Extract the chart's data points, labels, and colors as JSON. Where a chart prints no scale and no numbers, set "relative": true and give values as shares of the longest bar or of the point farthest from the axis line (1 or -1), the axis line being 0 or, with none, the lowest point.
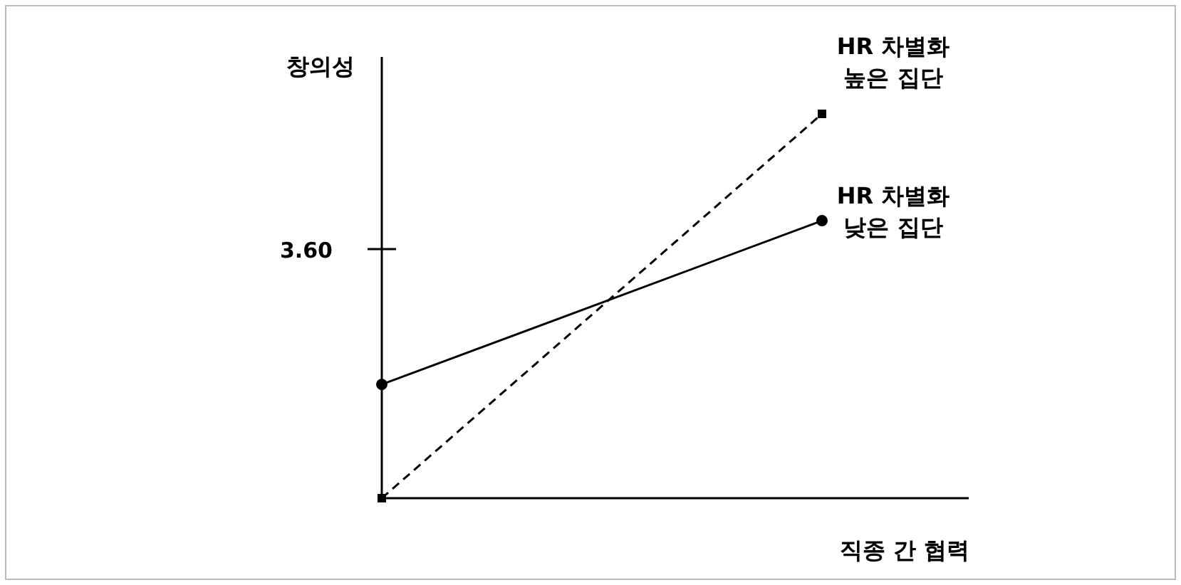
{
  "chart_data": {
    "type": "line",
    "relative": true,
    "xlabel": "직종 간 협력",
    "ylabel": "창의성",
    "categories": [
      null,
      null
    ],
    "series": [
      {
        "name": "HR 차별화\n높은 집단",
        "color": "#000000",
        "values": [
          0,
          1
        ],
        "line_style": "dashed",
        "marker": "square"
      },
      {
        "name": "HR 차별화\n낮은 집단",
        "color": "#000000",
        "values": [
          0.296,
          0.722
        ],
        "line_style": "solid",
        "marker": "circle"
      }
    ],
    "annotations": [
      "3.60"
    ]
  }
}
